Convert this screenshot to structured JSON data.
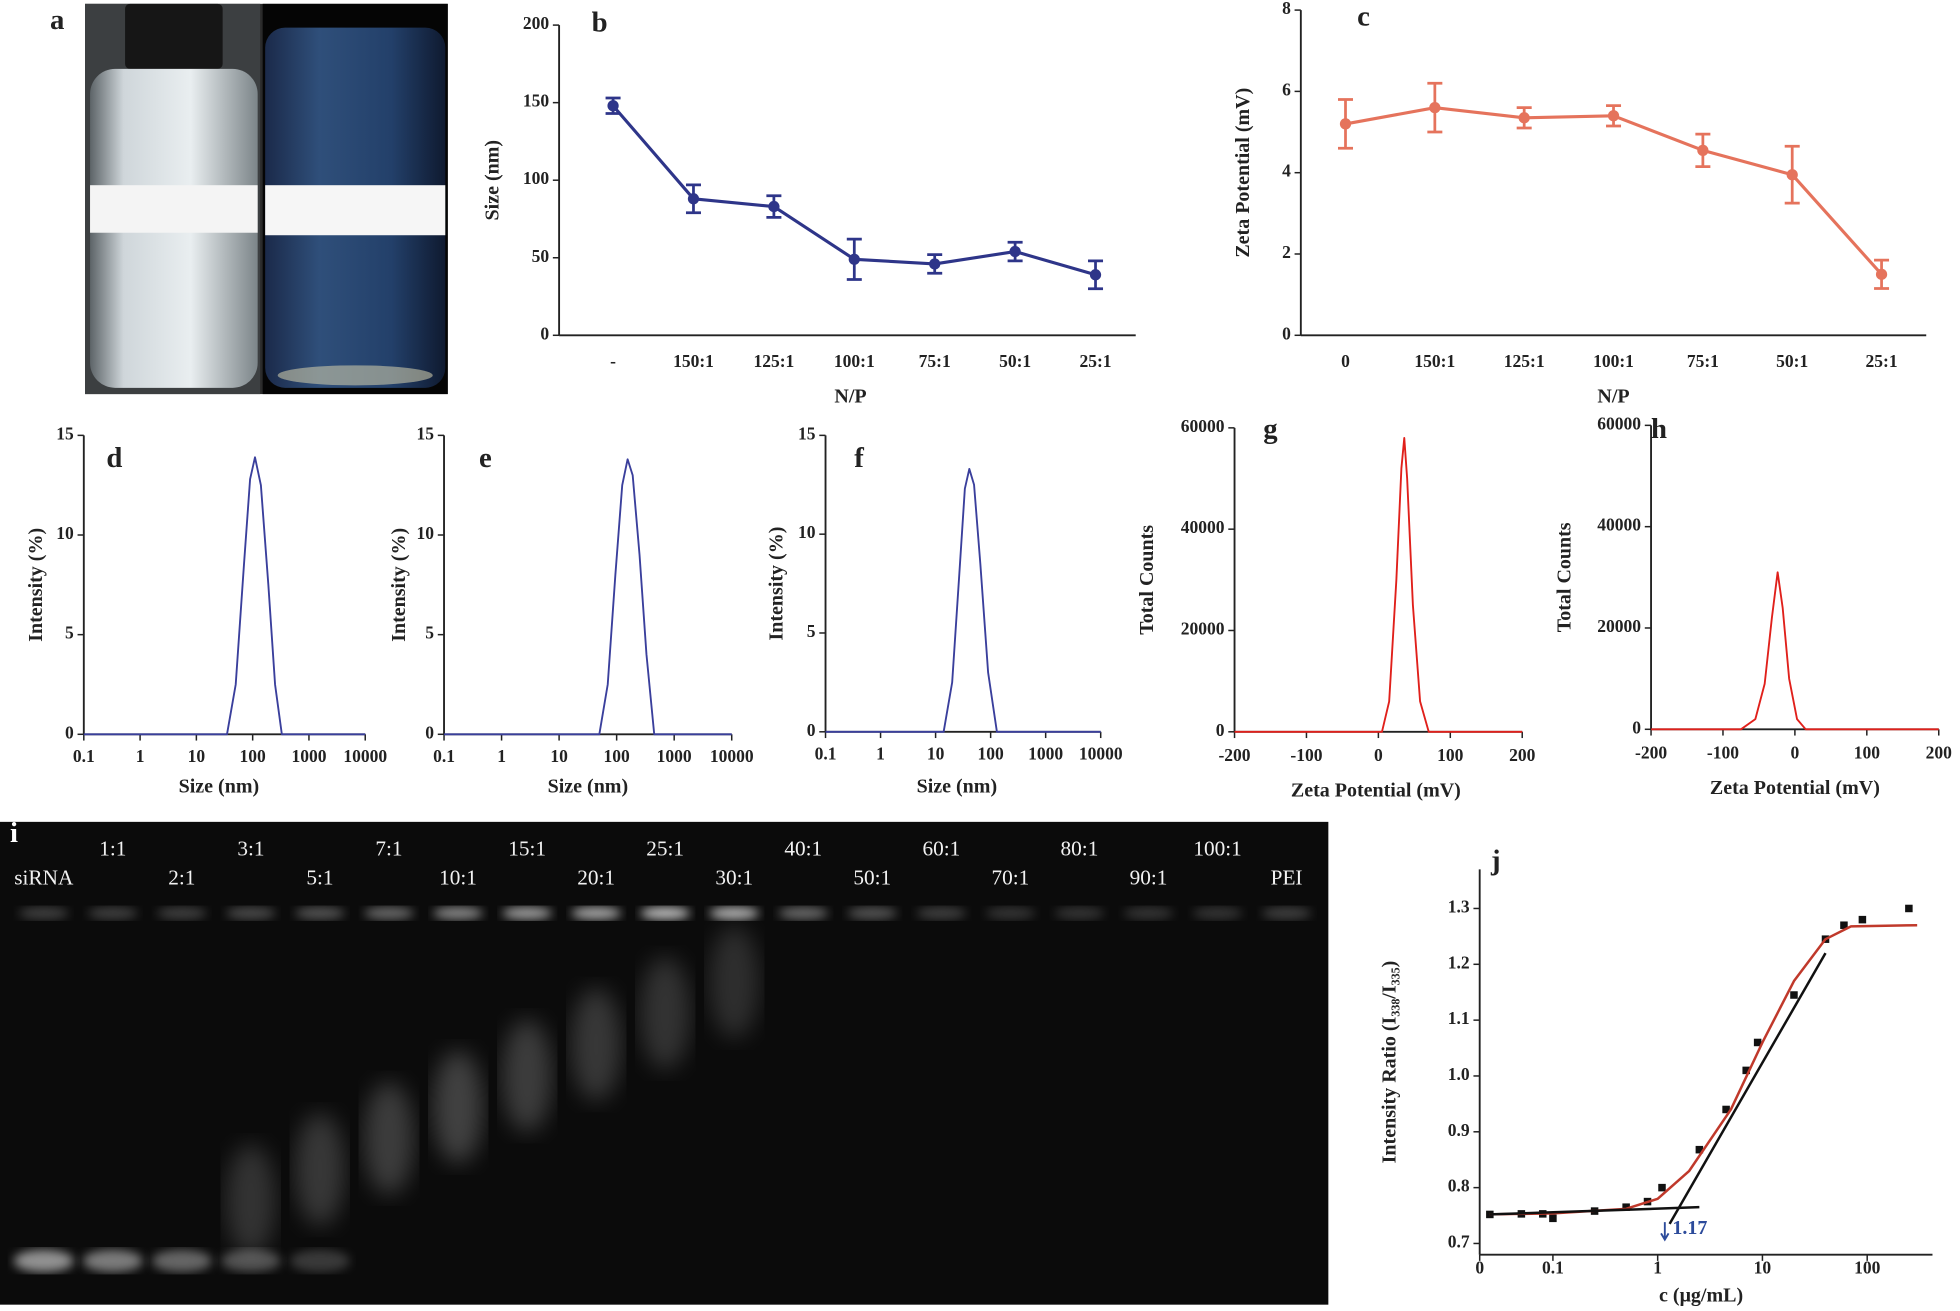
{
  "photo_panel": {
    "label": "a"
  },
  "chart_data": [
    {
      "type": "line",
      "panel_label": "b",
      "ylabel": "Size (nm)",
      "xlabel": "N/P",
      "categories": [
        "-",
        "150:1",
        "125:1",
        "100:1",
        "75:1",
        "50:1",
        "25:1"
      ],
      "values": [
        148,
        88,
        83,
        49,
        46,
        54,
        39
      ],
      "errors": [
        5,
        9,
        7,
        13,
        6,
        6,
        9
      ],
      "color": "#2e3589",
      "ylim": [
        0,
        200
      ],
      "yticks": [
        0,
        50,
        100,
        150,
        200
      ]
    },
    {
      "type": "line",
      "panel_label": "c",
      "ylabel": "Zeta Potential (mV)",
      "xlabel": "N/P",
      "categories": [
        "0",
        "150:1",
        "125:1",
        "100:1",
        "75:1",
        "50:1",
        "25:1"
      ],
      "values": [
        5.2,
        5.6,
        5.35,
        5.4,
        4.55,
        3.95,
        1.5
      ],
      "errors": [
        0.6,
        0.6,
        0.25,
        0.25,
        0.4,
        0.7,
        0.35
      ],
      "color": "#e5735c",
      "ylim": [
        0,
        8
      ],
      "yticks": [
        0,
        2,
        4,
        6,
        8
      ]
    },
    {
      "type": "line",
      "panel_label": "d",
      "ylabel": "Intensity (%)",
      "xlabel": "Size (nm)",
      "xscale": "log",
      "x": [
        0.1,
        35,
        50,
        70,
        90,
        110,
        140,
        190,
        250,
        330,
        10000
      ],
      "values": [
        0,
        0,
        2.5,
        8.5,
        12.8,
        13.9,
        12.5,
        7.5,
        2.5,
        0,
        0
      ],
      "color": "#3a3f9c",
      "xlim": [
        0.1,
        10000
      ],
      "xticks": [
        0.1,
        1,
        10,
        100,
        1000,
        10000
      ],
      "ylim": [
        0,
        15
      ],
      "yticks": [
        0,
        5,
        10,
        15
      ]
    },
    {
      "type": "line",
      "panel_label": "e",
      "ylabel": "Intensity (%)",
      "xlabel": "Size (nm)",
      "xscale": "log",
      "x": [
        0.1,
        50,
        70,
        95,
        125,
        155,
        190,
        250,
        330,
        450,
        10000
      ],
      "values": [
        0,
        0,
        2.5,
        8,
        12.5,
        13.8,
        13,
        9,
        4,
        0,
        0
      ],
      "color": "#3a3f9c",
      "xlim": [
        0.1,
        10000
      ],
      "xticks": [
        0.1,
        1,
        10,
        100,
        1000,
        10000
      ],
      "ylim": [
        0,
        15
      ],
      "yticks": [
        0,
        5,
        10,
        15
      ]
    },
    {
      "type": "line",
      "panel_label": "f",
      "ylabel": "Intensity (%)",
      "xlabel": "Size (nm)",
      "xscale": "log",
      "x": [
        0.1,
        14,
        20,
        27,
        34,
        41,
        50,
        65,
        90,
        130,
        10000
      ],
      "values": [
        0,
        0,
        2.5,
        8,
        12.3,
        13.3,
        12.5,
        8.5,
        3,
        0,
        0
      ],
      "color": "#3a3f9c",
      "xlim": [
        0.1,
        10000
      ],
      "xticks": [
        0.1,
        1,
        10,
        100,
        1000,
        10000
      ],
      "ylim": [
        0,
        15
      ],
      "yticks": [
        0,
        5,
        10,
        15
      ]
    },
    {
      "type": "line",
      "panel_label": "g",
      "ylabel": "Total Counts",
      "xlabel": "Zeta Potential (mV)",
      "x": [
        -200,
        5,
        15,
        25,
        32,
        36,
        40,
        48,
        58,
        70,
        200
      ],
      "values": [
        0,
        0,
        6000,
        30000,
        52000,
        58000,
        50000,
        25000,
        6000,
        0,
        0
      ],
      "color": "#e0201b",
      "xlim": [
        -200,
        200
      ],
      "xticks": [
        -200,
        -100,
        0,
        100,
        200
      ],
      "ylim": [
        0,
        60000
      ],
      "yticks": [
        0,
        20000,
        40000,
        60000
      ]
    },
    {
      "type": "line",
      "panel_label": "h",
      "ylabel": "Total Counts",
      "xlabel": "Zeta Potential (mV)",
      "x": [
        -200,
        -75,
        -55,
        -42,
        -32,
        -24,
        -17,
        -8,
        3,
        15,
        200
      ],
      "values": [
        0,
        0,
        2000,
        9000,
        22000,
        31000,
        24000,
        10000,
        2000,
        0,
        0
      ],
      "color": "#e0201b",
      "xlim": [
        -200,
        200
      ],
      "xticks": [
        -200,
        -100,
        0,
        100,
        200
      ],
      "ylim": [
        0,
        60000
      ],
      "yticks": [
        0,
        20000,
        40000,
        60000
      ]
    },
    {
      "type": "scatter",
      "panel_label": "j",
      "ylabel": "Intensity Ratio (I₃₃₈/I₃₃₅)",
      "xlabel": "c (μg/mL)",
      "xscale": "log",
      "series": [
        {
          "type": "scatter",
          "color": "#111111",
          "x": [
            0.025,
            0.05,
            0.08,
            0.1,
            0.25,
            0.5,
            0.8,
            1.1,
            2.5,
            4.5,
            7,
            9,
            20,
            40,
            60,
            90,
            250
          ],
          "values": [
            0.752,
            0.753,
            0.753,
            0.745,
            0.758,
            0.765,
            0.775,
            0.8,
            0.868,
            0.94,
            1.01,
            1.06,
            1.145,
            1.245,
            1.27,
            1.28,
            1.3
          ]
        },
        {
          "type": "line",
          "color": "#c0392b",
          "x": [
            0.025,
            0.1,
            0.5,
            1,
            2,
            5,
            10,
            20,
            40,
            70,
            300
          ],
          "values": [
            0.752,
            0.754,
            0.762,
            0.78,
            0.83,
            0.94,
            1.06,
            1.17,
            1.245,
            1.268,
            1.27
          ]
        },
        {
          "type": "line",
          "color": "#111111",
          "x": [
            0.025,
            2.5
          ],
          "values": [
            0.752,
            0.765
          ]
        },
        {
          "type": "line",
          "color": "#111111",
          "x": [
            1.3,
            40
          ],
          "values": [
            0.735,
            1.22
          ]
        }
      ],
      "annotation": {
        "text": "1.17",
        "x": 1.17,
        "color": "#2c4b9b"
      },
      "xlim": [
        0.02,
        420
      ],
      "xticks": [
        {
          "value": 0.02,
          "label": "0"
        },
        0.1,
        1,
        10,
        100
      ],
      "ylim": [
        0.68,
        1.37
      ],
      "yticks": [
        0.7,
        0.8,
        0.9,
        {
          "value": 1,
          "label": "1.0"
        },
        1.1,
        1.2,
        1.3
      ]
    }
  ],
  "gel_panel": {
    "label": "i",
    "lanes": [
      "siRNA",
      "1:1",
      "2:1",
      "3:1",
      "5:1",
      "7:1",
      "10:1",
      "15:1",
      "20:1",
      "25:1",
      "30:1",
      "40:1",
      "50:1",
      "60:1",
      "70:1",
      "80:1",
      "90:1",
      "100:1",
      "PEI"
    ]
  }
}
